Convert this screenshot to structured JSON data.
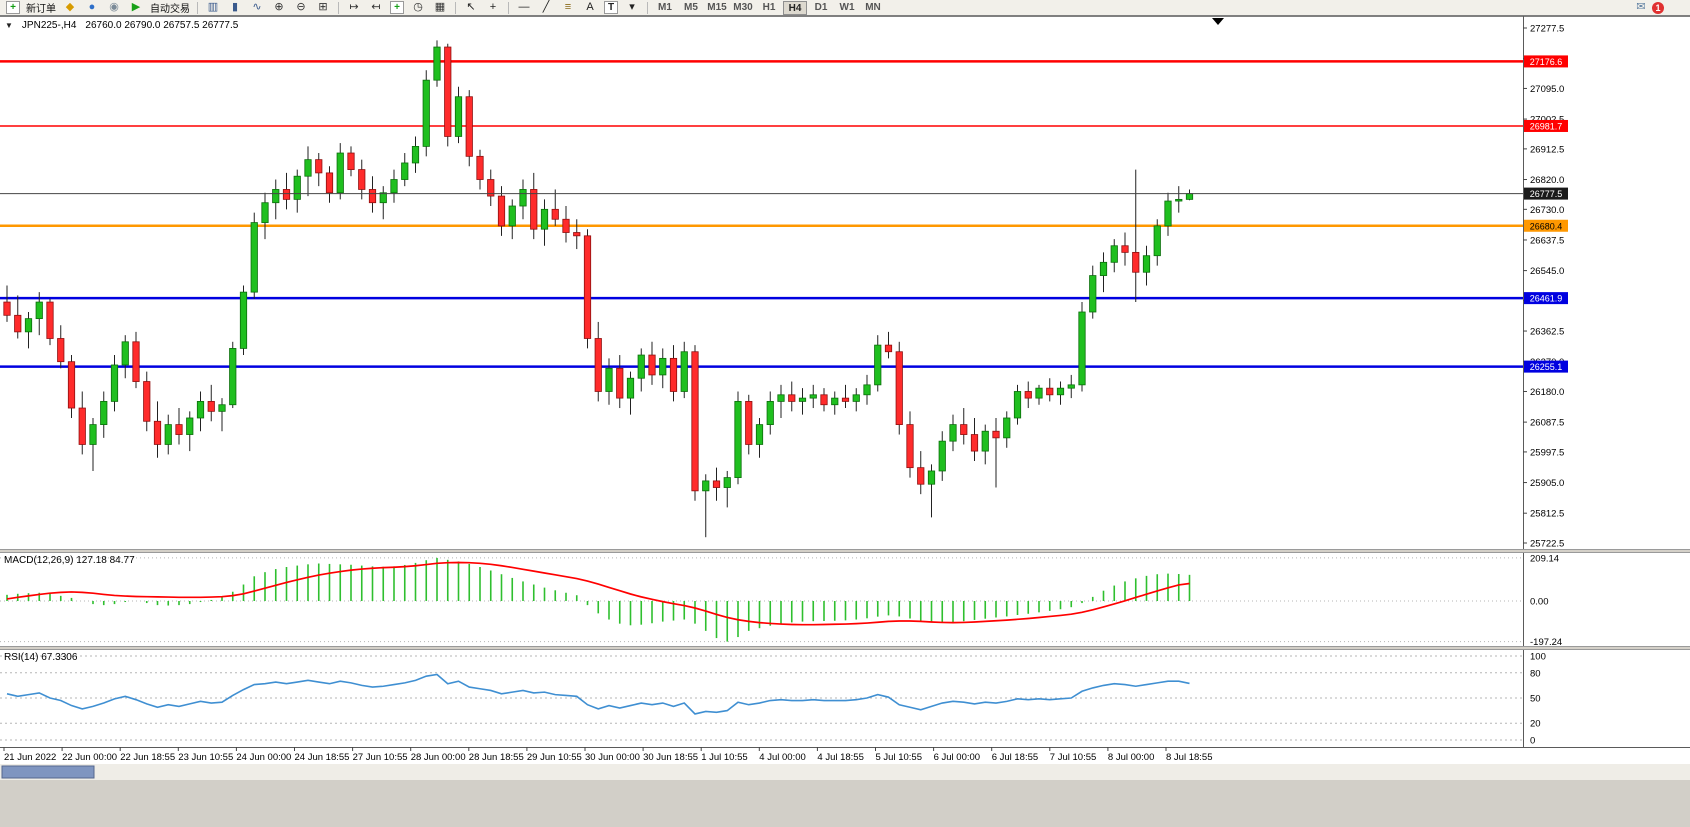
{
  "toolbar": {
    "timeframes": [
      "M1",
      "M5",
      "M15",
      "M30",
      "H1",
      "H4",
      "D1",
      "W1",
      "MN"
    ],
    "active_timeframe": "H4",
    "items": [
      {
        "type": "icon",
        "name": "new-order-icon",
        "glyph": "+",
        "color": "#119c11",
        "box": true
      },
      {
        "type": "label",
        "name": "new-order-label",
        "text": "新订单"
      },
      {
        "type": "icon",
        "name": "metaeditor-icon",
        "glyph": "◆",
        "color": "#d79b00"
      },
      {
        "type": "icon",
        "name": "terminal-icon",
        "glyph": "●",
        "color": "#2e6fc9"
      },
      {
        "type": "icon",
        "name": "signals-icon",
        "glyph": "◉",
        "color": "#7b8a97"
      },
      {
        "type": "icon",
        "name": "autotrading-icon",
        "glyph": "▶",
        "color": "#18a018"
      },
      {
        "type": "label",
        "name": "autotrading-label",
        "text": "自动交易"
      },
      {
        "type": "sep"
      },
      {
        "type": "icon",
        "name": "bar-chart-icon",
        "glyph": "▥",
        "color": "#3a5a8c"
      },
      {
        "type": "icon",
        "name": "candlestick-chart-icon",
        "glyph": "▮",
        "color": "#3a5a8c"
      },
      {
        "type": "icon",
        "name": "line-chart-icon",
        "glyph": "∿",
        "color": "#3a5a8c"
      },
      {
        "type": "icon",
        "name": "zoom-in-icon",
        "glyph": "⊕",
        "color": "#333333"
      },
      {
        "type": "icon",
        "name": "zoom-out-icon",
        "glyph": "⊖",
        "color": "#333333"
      },
      {
        "type": "icon",
        "name": "tile-windows-icon",
        "glyph": "⊞",
        "color": "#333333"
      },
      {
        "type": "sep"
      },
      {
        "type": "icon",
        "name": "auto-scroll-icon",
        "glyph": "↦",
        "color": "#333333"
      },
      {
        "type": "icon",
        "name": "chart-shift-icon",
        "glyph": "↤",
        "color": "#333333"
      },
      {
        "type": "icon",
        "name": "indicators-icon",
        "glyph": "+",
        "color": "#18a018",
        "box": true
      },
      {
        "type": "icon",
        "name": "periods-icon",
        "glyph": "◷",
        "color": "#333333"
      },
      {
        "type": "icon",
        "name": "templates-icon",
        "glyph": "▦",
        "color": "#333333"
      },
      {
        "type": "sep"
      },
      {
        "type": "icon",
        "name": "cursor-icon",
        "glyph": "↖",
        "color": "#222222"
      },
      {
        "type": "icon",
        "name": "crosshair-icon",
        "glyph": "+",
        "color": "#222222"
      },
      {
        "type": "sep"
      },
      {
        "type": "icon",
        "name": "horizontal-line-tool-icon",
        "glyph": "—",
        "color": "#222222"
      },
      {
        "type": "icon",
        "name": "trendline-tool-icon",
        "glyph": "╱",
        "color": "#222222"
      },
      {
        "type": "icon",
        "name": "fibonacci-tool-icon",
        "glyph": "≡",
        "color": "#8a6a1a"
      },
      {
        "type": "icon",
        "name": "text-tool-icon",
        "glyph": "A",
        "color": "#222222"
      },
      {
        "type": "icon",
        "name": "text-label-tool-icon",
        "glyph": "T",
        "color": "#222222",
        "box": true
      },
      {
        "type": "icon",
        "name": "arrows-tool-icon",
        "glyph": "▾",
        "color": "#222222"
      },
      {
        "type": "sep"
      },
      {
        "type": "tfgroup"
      },
      {
        "type": "spacer"
      },
      {
        "type": "icon",
        "name": "mail-icon",
        "glyph": "✉",
        "color": "#5b7da0"
      },
      {
        "type": "badge",
        "name": "notification-badge",
        "text": "1"
      }
    ]
  },
  "chart": {
    "collapse_arrow": "▼",
    "title": "JPN225-,H4",
    "ohlc": "26760.0 26790.0 26757.5 26777.5"
  },
  "chart_data": {
    "type": "candlestick",
    "symbol": "JPN225-",
    "period": "H4",
    "ohlc_display": {
      "open": "26760.0",
      "high": "26790.0",
      "low": "26757.5",
      "close": "26777.5"
    },
    "y_min": 25722.5,
    "y_max": 27277.5,
    "price_axis_labels": [
      "27277.5",
      "27185.0",
      "27095.0",
      "27002.5",
      "26912.5",
      "26820.0",
      "26730.0",
      "26637.5",
      "26545.0",
      "26455.0",
      "26362.5",
      "26270.0",
      "26180.0",
      "26087.5",
      "25997.5",
      "25905.0",
      "25812.5",
      "25722.5"
    ],
    "hlines": [
      {
        "price": 27176.6,
        "label": "27176.6",
        "color": "#ff0000",
        "width": 2.5,
        "text_color": "#ffffff"
      },
      {
        "price": 26981.7,
        "label": "26981.7",
        "color": "#ff0000",
        "width": 1.5,
        "text_color": "#ffffff"
      },
      {
        "price": 26777.5,
        "label": "26777.5",
        "color": "#2b2b2b",
        "width": 1,
        "text_color": "#ffffff",
        "bid": true
      },
      {
        "price": 26680.4,
        "label": "26680.4",
        "color": "#ff9800",
        "width": 2.5,
        "text_color": "#000000"
      },
      {
        "price": 26461.9,
        "label": "26461.9",
        "color": "#0000e0",
        "width": 2.5,
        "text_color": "#ffffff"
      },
      {
        "price": 26255.1,
        "label": "26255.1",
        "color": "#0000e0",
        "width": 2.5,
        "text_color": "#ffffff"
      }
    ],
    "colors": {
      "up": "#1fbf1f",
      "up_stroke": "#0a6e0a",
      "down": "#ff2b2b",
      "down_stroke": "#8f0f0f",
      "wick": "#222222",
      "macd_hist": "#2fbf2f",
      "macd_signal": "#ff0000",
      "rsi_line": "#3f8fd2"
    },
    "candles": [
      [
        26450,
        26500,
        26390,
        26410
      ],
      [
        26410,
        26470,
        26340,
        26360
      ],
      [
        26360,
        26420,
        26310,
        26400
      ],
      [
        26400,
        26480,
        26350,
        26450
      ],
      [
        26450,
        26460,
        26320,
        26340
      ],
      [
        26340,
        26380,
        26250,
        26270
      ],
      [
        26270,
        26290,
        26100,
        26130
      ],
      [
        26130,
        26180,
        25990,
        26020
      ],
      [
        26020,
        26100,
        25940,
        26080
      ],
      [
        26080,
        26180,
        26040,
        26150
      ],
      [
        26150,
        26290,
        26120,
        26260
      ],
      [
        26260,
        26350,
        26220,
        26330
      ],
      [
        26330,
        26360,
        26190,
        26210
      ],
      [
        26210,
        26240,
        26060,
        26090
      ],
      [
        26090,
        26150,
        25980,
        26020
      ],
      [
        26020,
        26110,
        25990,
        26080
      ],
      [
        26080,
        26130,
        26020,
        26050
      ],
      [
        26050,
        26120,
        26000,
        26100
      ],
      [
        26100,
        26180,
        26060,
        26150
      ],
      [
        26150,
        26200,
        26090,
        26120
      ],
      [
        26120,
        26160,
        26060,
        26140
      ],
      [
        26140,
        26330,
        26130,
        26310
      ],
      [
        26310,
        26500,
        26290,
        26480
      ],
      [
        26480,
        26720,
        26460,
        26690
      ],
      [
        26690,
        26780,
        26640,
        26750
      ],
      [
        26750,
        26820,
        26700,
        26790
      ],
      [
        26790,
        26840,
        26730,
        26760
      ],
      [
        26760,
        26850,
        26720,
        26830
      ],
      [
        26830,
        26920,
        26770,
        26880
      ],
      [
        26880,
        26900,
        26800,
        26840
      ],
      [
        26840,
        26860,
        26750,
        26780
      ],
      [
        26780,
        26930,
        26760,
        26900
      ],
      [
        26900,
        26920,
        26830,
        26850
      ],
      [
        26850,
        26880,
        26760,
        26790
      ],
      [
        26790,
        26830,
        26720,
        26750
      ],
      [
        26750,
        26800,
        26700,
        26780
      ],
      [
        26780,
        26850,
        26750,
        26820
      ],
      [
        26820,
        26900,
        26800,
        26870
      ],
      [
        26870,
        26950,
        26840,
        26920
      ],
      [
        26920,
        27150,
        26890,
        27120
      ],
      [
        27120,
        27240,
        27100,
        27220
      ],
      [
        27220,
        27230,
        26920,
        26950
      ],
      [
        26950,
        27100,
        26930,
        27070
      ],
      [
        27070,
        27090,
        26860,
        26890
      ],
      [
        26890,
        26910,
        26790,
        26820
      ],
      [
        26820,
        26850,
        26740,
        26770
      ],
      [
        26770,
        26800,
        26650,
        26680
      ],
      [
        26680,
        26760,
        26640,
        26740
      ],
      [
        26740,
        26820,
        26700,
        26790
      ],
      [
        26790,
        26840,
        26640,
        26670
      ],
      [
        26670,
        26760,
        26620,
        26730
      ],
      [
        26730,
        26790,
        26680,
        26700
      ],
      [
        26700,
        26740,
        26630,
        26660
      ],
      [
        26660,
        26700,
        26610,
        26650
      ],
      [
        26650,
        26670,
        26310,
        26340
      ],
      [
        26340,
        26390,
        26150,
        26180
      ],
      [
        26180,
        26280,
        26140,
        26250
      ],
      [
        26250,
        26290,
        26130,
        26160
      ],
      [
        26160,
        26240,
        26110,
        26220
      ],
      [
        26220,
        26310,
        26180,
        26290
      ],
      [
        26290,
        26330,
        26200,
        26230
      ],
      [
        26230,
        26310,
        26190,
        26280
      ],
      [
        26280,
        26320,
        26150,
        26180
      ],
      [
        26180,
        26330,
        26160,
        26300
      ],
      [
        26300,
        26320,
        25850,
        25880
      ],
      [
        25880,
        25930,
        25740,
        25910
      ],
      [
        25910,
        25950,
        25850,
        25890
      ],
      [
        25890,
        25940,
        25830,
        25920
      ],
      [
        25920,
        26180,
        25900,
        26150
      ],
      [
        26150,
        26170,
        25990,
        26020
      ],
      [
        26020,
        26100,
        25980,
        26080
      ],
      [
        26080,
        26180,
        26050,
        26150
      ],
      [
        26150,
        26200,
        26100,
        26170
      ],
      [
        26170,
        26210,
        26120,
        26150
      ],
      [
        26150,
        26190,
        26110,
        26160
      ],
      [
        26160,
        26200,
        26130,
        26170
      ],
      [
        26170,
        26190,
        26120,
        26140
      ],
      [
        26140,
        26180,
        26110,
        26160
      ],
      [
        26160,
        26200,
        26130,
        26150
      ],
      [
        26150,
        26190,
        26120,
        26170
      ],
      [
        26170,
        26230,
        26140,
        26200
      ],
      [
        26200,
        26350,
        26180,
        26320
      ],
      [
        26320,
        26360,
        26280,
        26300
      ],
      [
        26300,
        26330,
        26050,
        26080
      ],
      [
        26080,
        26120,
        25920,
        25950
      ],
      [
        25950,
        26000,
        25870,
        25900
      ],
      [
        25900,
        25960,
        25800,
        25940
      ],
      [
        25940,
        26060,
        25910,
        26030
      ],
      [
        26030,
        26110,
        26000,
        26080
      ],
      [
        26080,
        26130,
        26020,
        26050
      ],
      [
        26050,
        26100,
        25970,
        26000
      ],
      [
        26000,
        26080,
        25960,
        26060
      ],
      [
        26060,
        26100,
        25890,
        26040
      ],
      [
        26040,
        26120,
        26010,
        26100
      ],
      [
        26100,
        26200,
        26080,
        26180
      ],
      [
        26180,
        26210,
        26130,
        26160
      ],
      [
        26160,
        26200,
        26140,
        26190
      ],
      [
        26190,
        26220,
        26150,
        26170
      ],
      [
        26170,
        26210,
        26140,
        26190
      ],
      [
        26190,
        26230,
        26160,
        26200
      ],
      [
        26200,
        26450,
        26180,
        26420
      ],
      [
        26420,
        26560,
        26400,
        26530
      ],
      [
        26530,
        26600,
        26480,
        26570
      ],
      [
        26570,
        26640,
        26540,
        26620
      ],
      [
        26620,
        26660,
        26560,
        26600
      ],
      [
        26600,
        26850,
        26450,
        26540
      ],
      [
        26540,
        26620,
        26500,
        26590
      ],
      [
        26590,
        26700,
        26560,
        26680
      ],
      [
        26680,
        26780,
        26650,
        26755
      ],
      [
        26755,
        26800,
        26720,
        26760
      ],
      [
        26760,
        26790,
        26757.5,
        26777.5
      ]
    ],
    "time_labels": [
      "21 Jun 2022",
      "22 Jun 00:00",
      "22 Jun 18:55",
      "23 Jun 10:55",
      "24 Jun 00:00",
      "24 Jun 18:55",
      "27 Jun 10:55",
      "28 Jun 00:00",
      "28 Jun 18:55",
      "29 Jun 10:55",
      "30 Jun 00:00",
      "30 Jun 18:55",
      "1 Jul 10:55",
      "4 Jul 00:00",
      "4 Jul 18:55",
      "5 Jul 10:55",
      "6 Jul 00:00",
      "6 Jul 18:55",
      "7 Jul 10:55",
      "8 Jul 00:00",
      "8 Jul 18:55"
    ],
    "macd": {
      "label": "MACD(12,26,9) 127.18 84.77",
      "scale_labels": [
        "209.14",
        "0.00",
        "-197.24"
      ],
      "scale_levels": [
        209.14,
        0,
        -197.24
      ],
      "histogram": [
        30,
        35,
        38,
        40,
        35,
        25,
        15,
        0,
        -15,
        -20,
        -15,
        -5,
        0,
        -10,
        -20,
        -22,
        -20,
        -15,
        -5,
        5,
        20,
        45,
        80,
        120,
        140,
        155,
        165,
        172,
        178,
        182,
        180,
        178,
        176,
        172,
        168,
        166,
        168,
        175,
        185,
        198,
        209,
        200,
        192,
        180,
        165,
        148,
        130,
        112,
        95,
        80,
        65,
        52,
        40,
        28,
        -20,
        -60,
        -90,
        -110,
        -118,
        -115,
        -108,
        -100,
        -95,
        -90,
        -110,
        -145,
        -180,
        -197,
        -175,
        -145,
        -132,
        -120,
        -110,
        -104,
        -100,
        -98,
        -97,
        -96,
        -94,
        -90,
        -84,
        -76,
        -70,
        -75,
        -85,
        -95,
        -102,
        -105,
        -103,
        -98,
        -92,
        -86,
        -80,
        -75,
        -68,
        -62,
        -55,
        -48,
        -40,
        -30,
        -10,
        20,
        50,
        75,
        95,
        110,
        122,
        130,
        133,
        131,
        127
      ],
      "signal": [
        10,
        18,
        25,
        32,
        38,
        42,
        44,
        42,
        38,
        32,
        27,
        24,
        22,
        21,
        20,
        19,
        18,
        18,
        18,
        19,
        21,
        26,
        35,
        48,
        62,
        76,
        90,
        103,
        115,
        126,
        135,
        143,
        150,
        155,
        159,
        162,
        164,
        167,
        171,
        177,
        183,
        186,
        187,
        186,
        183,
        178,
        171,
        163,
        154,
        145,
        136,
        127,
        118,
        109,
        97,
        82,
        66,
        50,
        34,
        20,
        8,
        -3,
        -13,
        -22,
        -34,
        -49,
        -65,
        -80,
        -91,
        -99,
        -105,
        -109,
        -112,
        -114,
        -115,
        -115,
        -114,
        -113,
        -112,
        -110,
        -107,
        -103,
        -99,
        -97,
        -97,
        -99,
        -102,
        -104,
        -105,
        -104,
        -102,
        -99,
        -96,
        -93,
        -89,
        -85,
        -80,
        -75,
        -70,
        -64,
        -55,
        -43,
        -29,
        -14,
        1,
        17,
        33,
        49,
        64,
        78,
        85
      ]
    },
    "rsi": {
      "label": "RSI(14) 67.3306",
      "scale_labels": [
        "100",
        "80",
        "50",
        "20",
        "0"
      ],
      "levels": [
        100,
        80,
        50,
        20,
        0
      ],
      "values": [
        55,
        52,
        54,
        56,
        50,
        47,
        41,
        37,
        40,
        44,
        49,
        52,
        48,
        43,
        39,
        42,
        40,
        43,
        46,
        44,
        45,
        53,
        60,
        66,
        67,
        69,
        67,
        69,
        71,
        69,
        67,
        70,
        68,
        65,
        63,
        64,
        66,
        68,
        71,
        76,
        78,
        67,
        70,
        63,
        61,
        59,
        55,
        57,
        59,
        56,
        57,
        54,
        53,
        52,
        42,
        37,
        41,
        38,
        41,
        44,
        42,
        44,
        40,
        44,
        31,
        34,
        33,
        35,
        45,
        42,
        44,
        47,
        48,
        47,
        47,
        48,
        47,
        47,
        47,
        48,
        50,
        54,
        51,
        42,
        39,
        36,
        40,
        44,
        46,
        45,
        43,
        45,
        44,
        46,
        49,
        48,
        49,
        48,
        49,
        50,
        58,
        62,
        65,
        67,
        66,
        64,
        66,
        68,
        70,
        70,
        67.33
      ]
    }
  }
}
